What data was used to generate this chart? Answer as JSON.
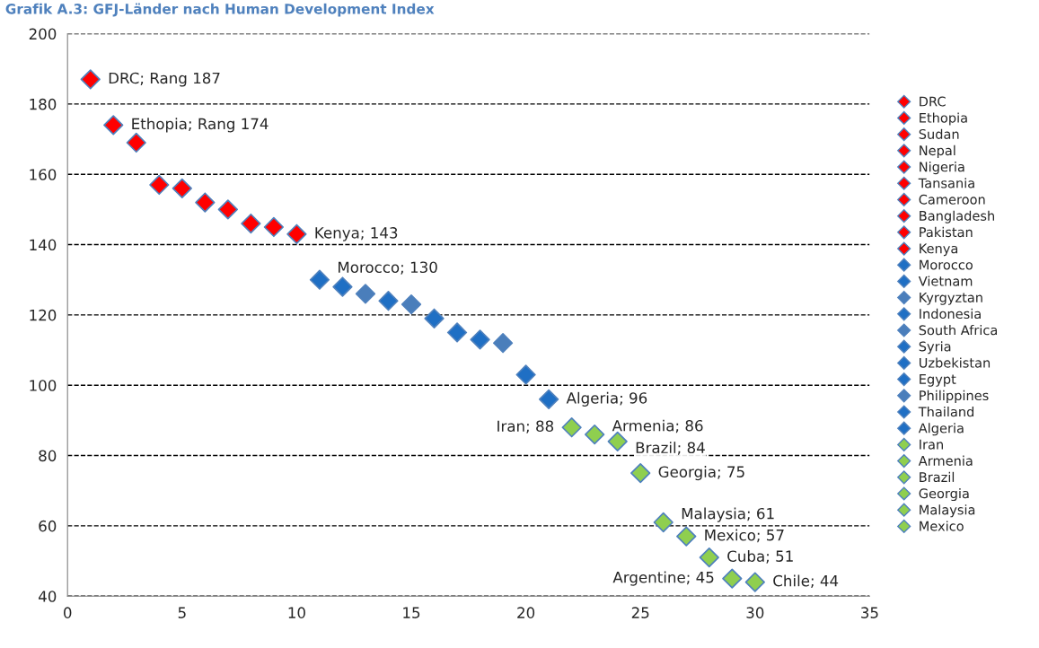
{
  "chart_data": {
    "type": "scatter",
    "title": "Grafik A.3: GFJ-Länder nach Human Development Index",
    "xlim": [
      0,
      35
    ],
    "ylim": [
      40,
      200
    ],
    "xticks": [
      0,
      5,
      10,
      15,
      20,
      25,
      30,
      35
    ],
    "yticks": [
      40,
      60,
      80,
      100,
      120,
      140,
      160,
      180,
      200
    ],
    "grid": "y",
    "line_style": "dashed",
    "legend": "right",
    "marker": "diamond",
    "series": [
      {
        "name": "DRC",
        "color": "#ff0000",
        "x": [
          1
        ],
        "values": [
          187
        ]
      },
      {
        "name": "Ethopia",
        "color": "#ff0000",
        "x": [
          2
        ],
        "values": [
          174
        ]
      },
      {
        "name": "Sudan",
        "color": "#ff0000",
        "x": [
          3
        ],
        "values": [
          169
        ]
      },
      {
        "name": "Nepal",
        "color": "#ff0000",
        "x": [
          4
        ],
        "values": [
          157
        ]
      },
      {
        "name": "Nigeria",
        "color": "#ff0000",
        "x": [
          5
        ],
        "values": [
          156
        ]
      },
      {
        "name": "Tansania",
        "color": "#ff0000",
        "x": [
          6
        ],
        "values": [
          152
        ]
      },
      {
        "name": "Cameroon",
        "color": "#ff0000",
        "x": [
          7
        ],
        "values": [
          150
        ]
      },
      {
        "name": "Bangladesh",
        "color": "#ff0000",
        "x": [
          8
        ],
        "values": [
          146
        ]
      },
      {
        "name": "Pakistan",
        "color": "#ff0000",
        "x": [
          9
        ],
        "values": [
          145
        ]
      },
      {
        "name": "Kenya",
        "color": "#ff0000",
        "x": [
          10
        ],
        "values": [
          143
        ]
      },
      {
        "name": "Morocco",
        "color": "#1f6fc4",
        "x": [
          11
        ],
        "values": [
          130
        ]
      },
      {
        "name": "Vietnam",
        "color": "#1f6fc4",
        "x": [
          12
        ],
        "values": [
          128
        ]
      },
      {
        "name": "Kyrgyztan",
        "color": "#4a7ebb",
        "x": [
          13
        ],
        "values": [
          126
        ]
      },
      {
        "name": "Indonesia",
        "color": "#1f6fc4",
        "x": [
          14
        ],
        "values": [
          124
        ]
      },
      {
        "name": "South Africa",
        "color": "#4a7ebb",
        "x": [
          15
        ],
        "values": [
          123
        ]
      },
      {
        "name": "Syria",
        "color": "#1f6fc4",
        "x": [
          16
        ],
        "values": [
          119
        ]
      },
      {
        "name": "Uzbekistan",
        "color": "#1f6fc4",
        "x": [
          17
        ],
        "values": [
          115
        ]
      },
      {
        "name": "Egypt",
        "color": "#1f6fc4",
        "x": [
          18
        ],
        "values": [
          113
        ]
      },
      {
        "name": "Philippines",
        "color": "#4a7ebb",
        "x": [
          19
        ],
        "values": [
          112
        ]
      },
      {
        "name": "Thailand",
        "color": "#1f6fc4",
        "x": [
          20
        ],
        "values": [
          103
        ]
      },
      {
        "name": "Algeria",
        "color": "#1f6fc4",
        "x": [
          21
        ],
        "values": [
          96
        ]
      },
      {
        "name": "Iran",
        "color": "#8fcf4f",
        "x": [
          22
        ],
        "values": [
          88
        ]
      },
      {
        "name": "Armenia",
        "color": "#8fcf4f",
        "x": [
          23
        ],
        "values": [
          86
        ]
      },
      {
        "name": "Brazil",
        "color": "#8fcf4f",
        "x": [
          24
        ],
        "values": [
          84
        ]
      },
      {
        "name": "Georgia",
        "color": "#8fcf4f",
        "x": [
          25
        ],
        "values": [
          75
        ]
      },
      {
        "name": "Malaysia",
        "color": "#8fcf4f",
        "x": [
          26
        ],
        "values": [
          61
        ]
      },
      {
        "name": "Mexico",
        "color": "#8fcf4f",
        "x": [
          27
        ],
        "values": [
          57
        ]
      },
      {
        "color": "#8fcf4f",
        "x": [
          28
        ],
        "values": [
          51
        ]
      },
      {
        "color": "#8fcf4f",
        "x": [
          29
        ],
        "values": [
          45
        ]
      },
      {
        "color": "#8fcf4f",
        "x": [
          30
        ],
        "values": [
          44
        ]
      }
    ],
    "annotations": [
      {
        "text": "DRC; Rang 187",
        "x": 1,
        "y": 187
      },
      {
        "text": "Ethopia; Rang 174",
        "x": 2,
        "y": 174
      },
      {
        "text": "Kenya; 143",
        "x": 10,
        "y": 143
      },
      {
        "text": "Morocco; 130",
        "x": 11,
        "y": 130
      },
      {
        "text": "Algeria; 96",
        "x": 21,
        "y": 96
      },
      {
        "text": "Iran; 88",
        "x": 22,
        "y": 88
      },
      {
        "text": "Armenia; 86",
        "x": 23,
        "y": 86
      },
      {
        "text": "Brazil; 84",
        "x": 24,
        "y": 84
      },
      {
        "text": "Georgia; 75",
        "x": 25,
        "y": 75
      },
      {
        "text": "Malaysia; 61",
        "x": 26,
        "y": 61
      },
      {
        "text": "Mexico; 57",
        "x": 27,
        "y": 57
      },
      {
        "text": "Cuba; 51",
        "x": 28,
        "y": 51
      },
      {
        "text": "Argentine; 45",
        "x": 29,
        "y": 45
      },
      {
        "text": "Chile; 44",
        "x": 30,
        "y": 44
      }
    ]
  }
}
